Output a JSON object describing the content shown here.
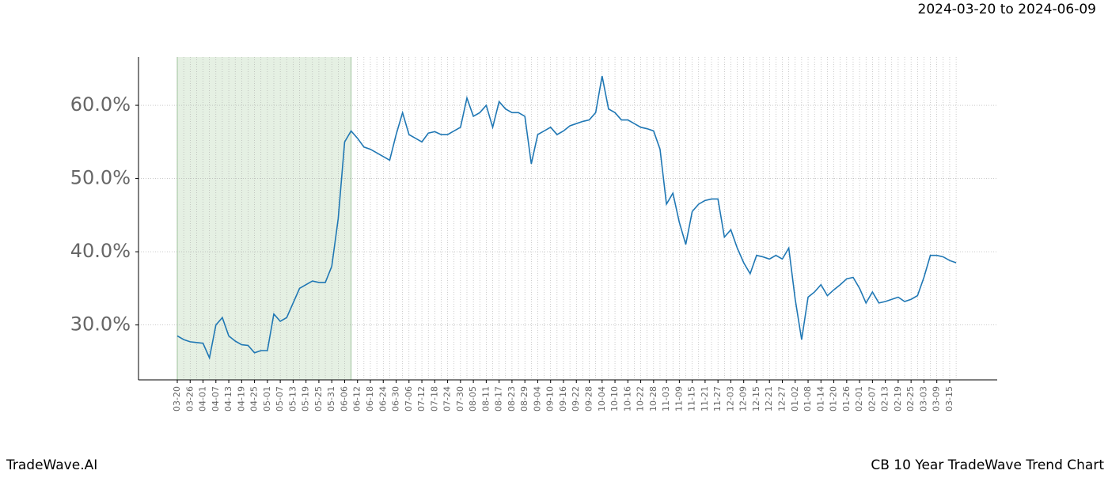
{
  "header": {
    "date_range": "2024-03-20 to 2024-06-09"
  },
  "footer": {
    "brand": "TradeWave.AI",
    "title": "CB 10 Year TradeWave Trend Chart"
  },
  "chart_data": {
    "type": "line",
    "categories": [
      "03-20",
      null,
      "03-26",
      null,
      "04-01",
      null,
      "04-07",
      null,
      "04-13",
      null,
      "04-19",
      null,
      "04-25",
      null,
      "05-01",
      null,
      "05-07",
      null,
      "05-13",
      null,
      "05-19",
      null,
      "05-25",
      null,
      "05-31",
      null,
      "06-06",
      null,
      "06-12",
      null,
      "06-18",
      null,
      "06-24",
      null,
      "06-30",
      null,
      "07-06",
      null,
      "07-12",
      null,
      "07-18",
      null,
      "07-24",
      null,
      "07-30",
      null,
      "08-05",
      null,
      "08-11",
      null,
      "08-17",
      null,
      "08-23",
      null,
      "08-29",
      null,
      "09-04",
      null,
      "09-10",
      null,
      "09-16",
      null,
      "09-22",
      null,
      "09-28",
      null,
      "10-04",
      null,
      "10-10",
      null,
      "10-16",
      null,
      "10-22",
      null,
      "10-28",
      null,
      "11-03",
      null,
      "11-09",
      null,
      "11-15",
      null,
      "11-21",
      null,
      "11-27",
      null,
      "12-03",
      null,
      "12-09",
      null,
      "12-15",
      null,
      "12-21",
      null,
      "12-27",
      null,
      "01-02",
      null,
      "01-08",
      null,
      "01-14",
      null,
      "01-20",
      null,
      "01-26",
      null,
      "02-01",
      null,
      "02-07",
      null,
      "02-13",
      null,
      "02-19",
      null,
      "02-25",
      null,
      "03-03",
      null,
      "03-09",
      null,
      "03-15",
      null
    ],
    "series": [
      {
        "color": "#1f77b4",
        "values": [
          28.5,
          28.0,
          27.7,
          27.6,
          27.5,
          25.5,
          30.0,
          31.0,
          28.5,
          27.8,
          27.3,
          27.2,
          26.2,
          26.5,
          26.5,
          31.5,
          30.5,
          31.0,
          33.0,
          35.0,
          35.5,
          36.0,
          35.8,
          35.8,
          38.0,
          44.5,
          55.0,
          56.5,
          55.5,
          54.3,
          54.0,
          53.5,
          53.0,
          52.5,
          56.0,
          59.0,
          56.0,
          55.5,
          55.0,
          56.2,
          56.4,
          56.0,
          56.0,
          56.5,
          57.0,
          61.0,
          58.5,
          59.0,
          60.0,
          57.0,
          60.5,
          59.5,
          59.0,
          59.0,
          58.5,
          52.0,
          56.0,
          56.5,
          57.0,
          56.0,
          56.5,
          57.2,
          57.5,
          57.8,
          58.0,
          59.0,
          64.0,
          59.5,
          59.0,
          58.0,
          58.0,
          57.5,
          57.0,
          56.8,
          56.5,
          54.0,
          46.5,
          48.0,
          44.0,
          41.0,
          45.5,
          46.5,
          47.0,
          47.2,
          47.2,
          42.0,
          43.0,
          40.5,
          38.5,
          37.0,
          39.5,
          39.3,
          39.0,
          39.5,
          39.0,
          40.5,
          33.5,
          28.0,
          33.8,
          34.5,
          35.5,
          34.0,
          34.8,
          35.5,
          36.3,
          36.5,
          35.0,
          33.0,
          34.5,
          33.0,
          33.2,
          33.5,
          33.8,
          33.2,
          33.5,
          34.0,
          36.5,
          39.5,
          39.5,
          39.3,
          38.8,
          38.5
        ]
      }
    ],
    "highlight_range": [
      0,
      27
    ],
    "highlight_color": "#e5f0e3",
    "ylim": [
      22.5,
      66.6
    ],
    "yticks": [
      {
        "value": 30,
        "label": "30.0%"
      },
      {
        "value": 40,
        "label": "40.0%"
      },
      {
        "value": 50,
        "label": "50.0%"
      },
      {
        "value": 60,
        "label": "60.0%"
      }
    ],
    "grid": true
  }
}
